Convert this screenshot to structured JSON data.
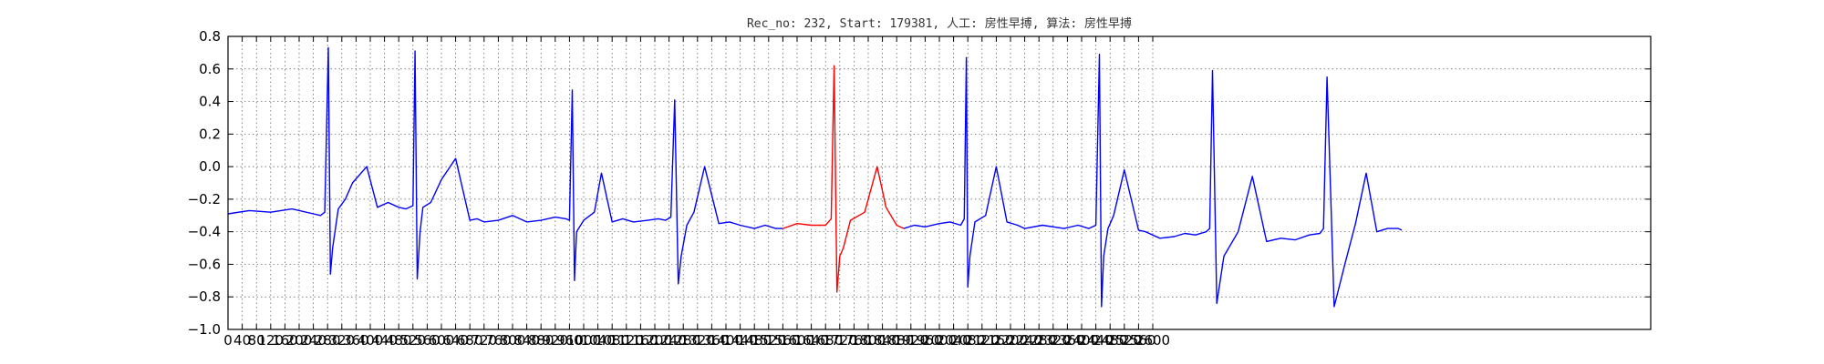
{
  "chart_data": {
    "type": "line",
    "title": "Rec_no: 232, Start: 179381, 人工: 房性早搏, 算法: 房性早搏",
    "xlabel": "",
    "ylabel": "",
    "xlim": [
      0,
      4000
    ],
    "ylim": [
      -1.0,
      0.8
    ],
    "x_tick_step": 40,
    "x_ticks": [
      0,
      40,
      80,
      120,
      160,
      200,
      240,
      280,
      320,
      360,
      400,
      440,
      480,
      520,
      560,
      600,
      640,
      680,
      720,
      760,
      800,
      840,
      880,
      920,
      960,
      1000,
      1040,
      1080,
      1120,
      1160,
      1200,
      1240,
      1280,
      1320,
      1360,
      1400,
      1440,
      1480,
      1520,
      1560,
      1600,
      1640,
      1680,
      1720,
      1760,
      1800,
      1840,
      1880,
      1920,
      1960,
      2000,
      2040,
      2080,
      2120,
      2160,
      2200,
      2240,
      2280,
      2320,
      2360,
      2400,
      2440,
      2480,
      2520,
      2560,
      2600
    ],
    "x_tick_labels": [
      "0",
      "40",
      "80",
      "120",
      "160",
      "200",
      "240",
      "280",
      "320",
      "360",
      "400",
      "440",
      "480",
      "520",
      "560",
      "600",
      "640",
      "680",
      "720",
      "760",
      "800",
      "840",
      "880",
      "920",
      "960",
      "1000",
      "1040",
      "1080",
      "1120",
      "1160",
      "1200",
      "1240",
      "1280",
      "1320",
      "1360",
      "1400",
      "1440",
      "1480",
      "1520",
      "1560",
      "1600",
      "1640",
      "1680",
      "1720",
      "1760",
      "1800",
      "1840",
      "1880",
      "1920",
      "1960",
      "2000",
      "2040",
      "2080",
      "2120",
      "2160",
      "2200",
      "2240",
      "2280",
      "2320",
      "2360",
      "2400",
      "2440",
      "2480",
      "2520",
      "2560",
      "2600"
    ],
    "y_ticks": [
      0.8,
      0.6,
      0.4,
      0.2,
      0.0,
      -0.2,
      -0.4,
      -0.6,
      -0.8,
      -1.0
    ],
    "y_tick_labels": [
      "0.8",
      "0.6",
      "0.4",
      "0.2",
      "0.0",
      "−0.2",
      "−0.4",
      "−0.6",
      "−0.8",
      "−1.0"
    ],
    "grid": true,
    "legend": "none",
    "series": [
      {
        "color": "#0000ff",
        "x": [
          0,
          60,
          120,
          180,
          240,
          260,
          272,
          282,
          288,
          294,
          310,
          330,
          350,
          390,
          420,
          450,
          480,
          500,
          520,
          526,
          532,
          540,
          548,
          570,
          600,
          640,
          680,
          700,
          720,
          760,
          800,
          840,
          880,
          920,
          950,
          960,
          968,
          974,
          980,
          1000,
          1030,
          1050,
          1080,
          1110,
          1140,
          1180,
          1210,
          1230,
          1245,
          1256,
          1266,
          1274,
          1290,
          1310,
          1340,
          1380,
          1410,
          1440,
          1480,
          1510,
          1540,
          1560
        ],
        "y": [
          -0.29,
          -0.27,
          -0.28,
          -0.26,
          -0.29,
          -0.3,
          -0.28,
          0.73,
          -0.66,
          -0.5,
          -0.26,
          -0.2,
          -0.1,
          0.0,
          -0.25,
          -0.22,
          -0.25,
          -0.26,
          -0.24,
          0.71,
          -0.69,
          -0.4,
          -0.25,
          -0.22,
          -0.08,
          0.05,
          -0.33,
          -0.32,
          -0.34,
          -0.33,
          -0.3,
          -0.34,
          -0.33,
          -0.31,
          -0.32,
          -0.33,
          0.47,
          -0.7,
          -0.4,
          -0.33,
          -0.28,
          -0.04,
          -0.34,
          -0.32,
          -0.34,
          -0.33,
          -0.32,
          -0.33,
          -0.31,
          0.41,
          -0.72,
          -0.55,
          -0.36,
          -0.28,
          0.0,
          -0.35,
          -0.34,
          -0.36,
          -0.38,
          -0.36,
          -0.38,
          -0.38
        ]
      },
      {
        "color": "#ff0000",
        "x": [
          1560,
          1600,
          1640,
          1680,
          1696,
          1704,
          1712,
          1720,
          1730,
          1750,
          1790,
          1825,
          1850,
          1880,
          1900
        ],
        "y": [
          -0.38,
          -0.35,
          -0.36,
          -0.36,
          -0.32,
          0.62,
          -0.77,
          -0.55,
          -0.5,
          -0.33,
          -0.28,
          0.0,
          -0.25,
          -0.36,
          -0.38
        ]
      },
      {
        "color": "#0000ff",
        "x": [
          1900,
          1930,
          1960,
          2000,
          2030,
          2060,
          2070,
          2076,
          2080,
          2086,
          2100,
          2130,
          2160,
          2190,
          2220,
          2240,
          2290,
          2350,
          2390,
          2420,
          2440,
          2450,
          2456,
          2462,
          2474,
          2490,
          2520,
          2560,
          2580,
          2620,
          2660,
          2690,
          2720,
          2750,
          2760,
          2768,
          2780,
          2800,
          2840,
          2880,
          2920,
          2960,
          3000,
          3040,
          3070,
          3080,
          3090,
          3110,
          3140,
          3170,
          3200,
          3230,
          3260,
          3290,
          3300
        ],
        "y": [
          -0.38,
          -0.36,
          -0.37,
          -0.35,
          -0.34,
          -0.36,
          -0.32,
          0.67,
          -0.74,
          -0.55,
          -0.34,
          -0.3,
          0.0,
          -0.34,
          -0.36,
          -0.38,
          -0.36,
          -0.38,
          -0.36,
          -0.38,
          -0.36,
          0.69,
          -0.86,
          -0.55,
          -0.38,
          -0.3,
          -0.02,
          -0.39,
          -0.4,
          -0.44,
          -0.43,
          -0.41,
          -0.42,
          -0.4,
          -0.38,
          0.59,
          -0.84,
          -0.55,
          -0.4,
          -0.06,
          -0.46,
          -0.44,
          -0.45,
          -0.42,
          -0.41,
          -0.38,
          0.55,
          -0.86,
          -0.6,
          -0.35,
          -0.04,
          -0.4,
          -0.38,
          -0.38,
          -0.39
        ]
      }
    ]
  }
}
